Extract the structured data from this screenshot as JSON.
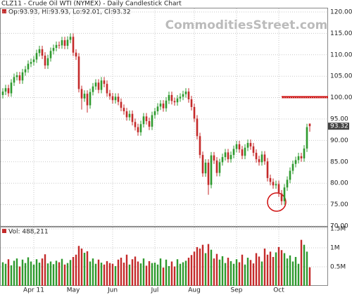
{
  "chart_data": {
    "type": "candlestick",
    "title": "CLZ11 - Crude Oil WTI (NYMEX) - Daily Candlestick Chart",
    "ohlc_label": "Op:93.93, Hi:93.93, Lo:92.01, Cl:93.32",
    "watermark": "CommoditiesStreet.com",
    "price_tag": "93.32",
    "up_color": "#2e9a2e",
    "down_color": "#c42a2a",
    "categories": [
      null,
      null,
      null,
      null,
      null,
      null,
      null,
      null,
      null,
      null,
      null,
      "Apr 11",
      null,
      null,
      null,
      null,
      null,
      null,
      null,
      null,
      null,
      null,
      null,
      null,
      null,
      "May",
      null,
      null,
      null,
      null,
      null,
      null,
      null,
      null,
      null,
      null,
      null,
      null,
      null,
      "Jun",
      null,
      null,
      null,
      null,
      null,
      null,
      null,
      null,
      null,
      null,
      null,
      null,
      null,
      null,
      "Jul",
      null,
      null,
      null,
      null,
      null,
      null,
      null,
      null,
      null,
      null,
      null,
      null,
      null,
      "Aug",
      null,
      null,
      null,
      null,
      null,
      null,
      null,
      null,
      null,
      null,
      null,
      null,
      null,
      null,
      "Sep",
      null,
      null,
      null,
      null,
      null,
      null,
      null,
      null,
      null,
      null,
      null,
      null,
      null,
      null,
      "Oct",
      null,
      null,
      null,
      null,
      null,
      null,
      null,
      null,
      null,
      null,
      null
    ],
    "open": [
      100.6,
      101.4,
      102.2,
      101.0,
      103.5,
      104.8,
      105.2,
      104.0,
      105.9,
      106.6,
      107.9,
      108.3,
      108.9,
      110.4,
      111.3,
      109.8,
      107.5,
      109.2,
      110.9,
      111.6,
      112.3,
      112.2,
      113.4,
      112.1,
      113.5,
      114.2,
      110.5,
      109.6,
      102.0,
      99.8,
      100.9,
      98.2,
      101.3,
      102.6,
      103.5,
      101.8,
      104.0,
      103.2,
      101.0,
      100.3,
      99.4,
      100.2,
      99.0,
      97.6,
      96.8,
      95.4,
      96.2,
      94.3,
      93.1,
      91.9,
      93.8,
      95.6,
      94.5,
      93.2,
      95.9,
      96.8,
      97.9,
      98.6,
      97.5,
      99.3,
      100.6,
      99.2,
      98.9,
      99.8,
      100.2,
      100.8,
      101.4,
      99.6,
      97.8,
      95.1,
      91.0,
      86.6,
      82.3,
      84.8,
      79.6,
      86.5,
      85.3,
      82.4,
      84.9,
      86.1,
      87.2,
      85.6,
      86.6,
      88.0,
      89.1,
      87.9,
      86.4,
      88.3,
      89.4,
      88.6,
      87.1,
      85.6,
      84.9,
      86.7,
      85.1,
      81.2,
      80.3,
      79.5,
      79.8,
      77.6,
      75.8,
      79.0,
      80.8,
      82.9,
      84.5,
      85.4,
      86.3,
      85.8,
      88.1,
      93.93
    ],
    "high": [
      102.2,
      103.0,
      103.0,
      104.3,
      105.6,
      106.0,
      106.0,
      106.7,
      107.4,
      108.7,
      109.1,
      109.7,
      111.2,
      112.1,
      112.1,
      110.6,
      110.0,
      111.7,
      112.4,
      113.1,
      113.1,
      114.2,
      114.2,
      114.3,
      115.0,
      115.0,
      111.3,
      110.4,
      102.8,
      101.7,
      101.7,
      102.1,
      103.4,
      104.3,
      104.3,
      104.8,
      104.8,
      104.0,
      101.8,
      101.1,
      101.0,
      101.0,
      99.8,
      98.4,
      97.6,
      97.0,
      97.0,
      95.1,
      93.9,
      94.6,
      96.4,
      96.4,
      95.3,
      96.7,
      97.6,
      98.7,
      99.4,
      99.4,
      100.1,
      101.4,
      101.4,
      100.0,
      100.6,
      101.0,
      101.6,
      102.2,
      102.2,
      100.4,
      98.6,
      95.9,
      91.8,
      87.4,
      85.6,
      85.6,
      87.3,
      87.3,
      86.1,
      85.7,
      86.9,
      88.0,
      88.0,
      87.4,
      88.8,
      89.9,
      89.9,
      88.7,
      89.1,
      90.2,
      90.2,
      89.4,
      87.9,
      86.4,
      87.5,
      87.5,
      85.9,
      82.0,
      81.1,
      80.6,
      80.6,
      78.4,
      79.8,
      81.6,
      83.7,
      85.3,
      86.2,
      87.1,
      87.1,
      88.9,
      93.9,
      93.93
    ],
    "low": [
      99.8,
      100.6,
      100.2,
      100.2,
      102.7,
      104.0,
      103.2,
      103.2,
      105.1,
      105.8,
      107.1,
      107.5,
      108.1,
      109.6,
      109.0,
      106.7,
      106.7,
      108.4,
      110.1,
      110.8,
      111.4,
      111.4,
      111.3,
      111.3,
      112.7,
      109.7,
      108.8,
      101.2,
      97.2,
      99.0,
      96.5,
      97.4,
      100.5,
      101.8,
      101.0,
      101.0,
      102.4,
      100.2,
      99.5,
      98.6,
      98.6,
      98.2,
      96.8,
      96.0,
      94.6,
      94.6,
      93.5,
      92.3,
      91.1,
      91.1,
      93.0,
      93.7,
      92.4,
      92.4,
      95.1,
      96.0,
      97.1,
      96.7,
      96.7,
      98.5,
      98.4,
      98.1,
      98.1,
      99.0,
      99.4,
      100.0,
      98.8,
      97.0,
      94.3,
      90.2,
      85.8,
      81.5,
      81.5,
      77.3,
      78.8,
      84.5,
      81.6,
      81.6,
      84.1,
      85.3,
      84.8,
      84.8,
      85.8,
      87.2,
      87.1,
      85.6,
      85.6,
      87.5,
      87.8,
      86.3,
      84.8,
      84.1,
      84.1,
      84.3,
      80.4,
      79.5,
      78.7,
      78.7,
      76.8,
      74.9,
      75.0,
      78.2,
      80.0,
      82.1,
      83.7,
      84.6,
      85.0,
      85.0,
      87.3,
      92.01
    ],
    "close": [
      101.4,
      102.2,
      101.0,
      103.5,
      104.8,
      105.2,
      104.0,
      105.9,
      106.6,
      107.9,
      108.3,
      108.9,
      110.4,
      111.3,
      109.8,
      107.5,
      109.2,
      110.9,
      111.6,
      112.3,
      112.2,
      113.4,
      112.1,
      113.5,
      114.2,
      110.5,
      109.6,
      102.0,
      99.8,
      100.9,
      98.2,
      101.3,
      102.6,
      103.5,
      101.8,
      104.0,
      103.2,
      101.0,
      100.3,
      99.4,
      100.2,
      99.0,
      97.6,
      96.8,
      95.4,
      96.2,
      94.3,
      93.1,
      91.9,
      93.8,
      95.6,
      94.5,
      93.2,
      95.9,
      96.8,
      97.9,
      98.6,
      97.5,
      99.3,
      100.6,
      99.2,
      98.9,
      99.8,
      100.2,
      100.8,
      101.4,
      99.6,
      97.8,
      95.1,
      91.0,
      86.6,
      82.3,
      84.8,
      79.6,
      86.5,
      85.3,
      82.4,
      84.9,
      86.1,
      87.2,
      85.6,
      86.6,
      88.0,
      89.1,
      87.9,
      86.4,
      88.3,
      89.4,
      88.6,
      87.1,
      85.6,
      84.9,
      86.7,
      85.1,
      81.2,
      80.3,
      79.5,
      79.8,
      77.6,
      75.8,
      79.0,
      80.8,
      82.9,
      84.5,
      85.4,
      86.3,
      85.8,
      88.1,
      93.1,
      93.32
    ],
    "ylim": [
      70,
      120
    ],
    "yticks": [
      {
        "value": 70,
        "label": "70.00"
      },
      {
        "value": 75,
        "label": "75.00"
      },
      {
        "value": 80,
        "label": "80.00"
      },
      {
        "value": 85,
        "label": "85.00"
      },
      {
        "value": 90,
        "label": "90.00"
      },
      {
        "value": 95,
        "label": "95.00"
      },
      {
        "value": 100,
        "label": "100.00"
      },
      {
        "value": 105,
        "label": "105.00"
      },
      {
        "value": 110,
        "label": "110.00"
      },
      {
        "value": 115,
        "label": "115.00"
      },
      {
        "value": 120,
        "label": "120.00"
      }
    ],
    "grid": true,
    "volume": {
      "title": "Vol: 488,211",
      "values": [
        620000,
        580000,
        700000,
        540000,
        660000,
        720000,
        510000,
        690000,
        600000,
        750000,
        640000,
        560000,
        700000,
        610000,
        720000,
        830000,
        590000,
        640000,
        570000,
        660000,
        620000,
        710000,
        560000,
        600000,
        680000,
        760000,
        820000,
        1050000,
        980000,
        870000,
        910000,
        640000,
        720000,
        580000,
        690000,
        610000,
        560000,
        650000,
        600000,
        580000,
        520000,
        690000,
        740000,
        610000,
        820000,
        560000,
        700000,
        770000,
        640000,
        590000,
        720000,
        530000,
        650000,
        600000,
        610000,
        560000,
        720000,
        480000,
        690000,
        520000,
        640000,
        510000,
        700000,
        580000,
        620000,
        660000,
        740000,
        810000,
        900000,
        1020000,
        980000,
        1080000,
        860000,
        1100000,
        950000,
        720000,
        840000,
        690000,
        780000,
        600000,
        740000,
        650000,
        580000,
        700000,
        620000,
        820000,
        560000,
        740000,
        680000,
        590000,
        860000,
        770000,
        640000,
        980000,
        820000,
        900000,
        760000,
        880000,
        1020000,
        940000,
        860000,
        720000,
        800000,
        640000,
        760000,
        580000,
        1210000,
        1080000,
        900000,
        488211
      ],
      "ylim": [
        0,
        1500000
      ],
      "yticks": [
        {
          "value": 500000,
          "label": "0.5M"
        },
        {
          "value": 1000000,
          "label": "1M"
        },
        {
          "value": 1500000,
          "label": "1.5M"
        }
      ]
    }
  }
}
